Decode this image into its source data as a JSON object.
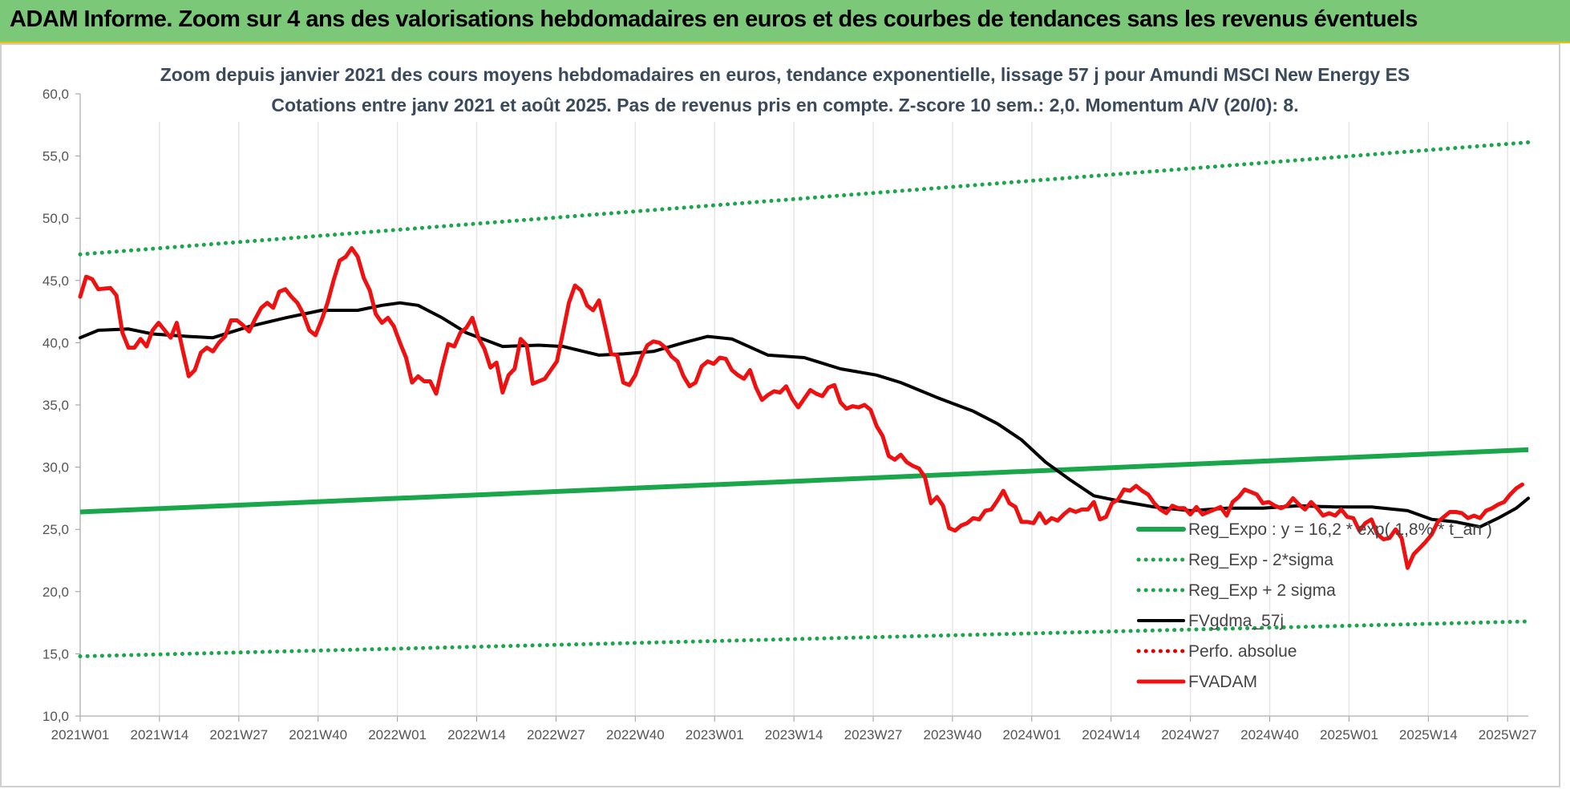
{
  "banner": {
    "title": "ADAM Informe. Zoom sur 4 ans des valorisations hebdomadaires en euros et des courbes de tendances sans les revenus éventuels"
  },
  "chart_data": {
    "type": "line",
    "title": "Zoom depuis janvier 2021 des cours moyens hebdomadaires en euros, tendance exponentielle, lissage 57 j pour Amundi MSCI New Energy ES",
    "subtitle": "Cotations entre janv 2021 et août 2025.  Pas de revenus pris en compte. Z-score 10 sem.: 2,0. Momentum A/V (20/0): 8.",
    "ylim": [
      10,
      60
    ],
    "yticks": [
      "10,0",
      "15,0",
      "20,0",
      "25,0",
      "30,0",
      "35,0",
      "40,0",
      "45,0",
      "50,0",
      "55,0",
      "60,0"
    ],
    "x_labels": [
      "2021W01",
      "2021W14",
      "2021W27",
      "2021W40",
      "2022W01",
      "2022W14",
      "2022W27",
      "2022W40",
      "2023W01",
      "2023W14",
      "2023W27",
      "2023W40",
      "2024W01",
      "2024W14",
      "2024W27",
      "2024W40",
      "2025W01",
      "2025W14",
      "2025W27"
    ],
    "x_range_weeks": [
      0,
      240
    ],
    "grid": "vertical",
    "legend_position": "lower-right",
    "series": [
      {
        "name": "Reg_Expo : y = 16,2 * exp( 1,8% * t_an )",
        "style": "solid",
        "color": "#1aa64a",
        "points": [
          [
            0,
            26.4
          ],
          [
            240,
            31.4
          ]
        ]
      },
      {
        "name": "Reg_Exp - 2*sigma",
        "style": "dotted",
        "color": "#1aa64a",
        "points": [
          [
            0,
            14.8
          ],
          [
            240,
            17.6
          ]
        ]
      },
      {
        "name": "Reg_Exp + 2 sigma",
        "style": "dotted",
        "color": "#1aa64a",
        "points": [
          [
            0,
            47.1
          ],
          [
            240,
            56.1
          ]
        ]
      },
      {
        "name": "FVgdma_57j",
        "style": "solid",
        "color": "#000000",
        "points": [
          [
            0,
            40.4
          ],
          [
            3,
            41
          ],
          [
            8,
            41.1
          ],
          [
            12,
            40.7
          ],
          [
            18,
            40.5
          ],
          [
            22,
            40.4
          ],
          [
            28,
            41.3
          ],
          [
            34,
            42
          ],
          [
            40,
            42.6
          ],
          [
            46,
            42.6
          ],
          [
            50,
            43
          ],
          [
            53,
            43.2
          ],
          [
            56,
            43
          ],
          [
            60,
            42
          ],
          [
            64,
            40.8
          ],
          [
            70,
            39.7
          ],
          [
            76,
            39.8
          ],
          [
            80,
            39.7
          ],
          [
            86,
            39
          ],
          [
            90,
            39.1
          ],
          [
            95,
            39.3
          ],
          [
            100,
            40
          ],
          [
            104,
            40.5
          ],
          [
            108,
            40.3
          ],
          [
            114,
            39
          ],
          [
            120,
            38.8
          ],
          [
            126,
            37.9
          ],
          [
            132,
            37.4
          ],
          [
            136,
            36.8
          ],
          [
            142,
            35.6
          ],
          [
            148,
            34.5
          ],
          [
            152,
            33.5
          ],
          [
            156,
            32.2
          ],
          [
            160,
            30.4
          ],
          [
            164,
            29
          ],
          [
            168,
            27.7
          ],
          [
            172,
            27.3
          ],
          [
            178,
            26.8
          ],
          [
            184,
            26.5
          ],
          [
            190,
            26.7
          ],
          [
            196,
            26.7
          ],
          [
            202,
            26.9
          ],
          [
            208,
            26.8
          ],
          [
            214,
            26.8
          ],
          [
            220,
            26.5
          ],
          [
            224,
            25.8
          ],
          [
            228,
            25.6
          ],
          [
            232,
            25.2
          ],
          [
            235,
            25.9
          ],
          [
            238,
            26.7
          ],
          [
            240,
            27.5
          ]
        ]
      },
      {
        "name": "Perfo. absolue",
        "style": "dotted",
        "color": "#e00000",
        "points": []
      },
      {
        "name": "FVADAM",
        "style": "solid",
        "color": "#ee1111",
        "points": [
          [
            0,
            43.7
          ],
          [
            1,
            45.3
          ],
          [
            2,
            45.1
          ],
          [
            3,
            44.3
          ],
          [
            5,
            44.4
          ],
          [
            6,
            43.8
          ],
          [
            7,
            40.8
          ],
          [
            8,
            39.6
          ],
          [
            9,
            39.6
          ],
          [
            10,
            40.3
          ],
          [
            11,
            39.7
          ],
          [
            12,
            41
          ],
          [
            13,
            41.6
          ],
          [
            14,
            41
          ],
          [
            15,
            40.4
          ],
          [
            16,
            41.6
          ],
          [
            17,
            39.4
          ],
          [
            18,
            37.3
          ],
          [
            19,
            37.8
          ],
          [
            20,
            39.2
          ],
          [
            21,
            39.6
          ],
          [
            22,
            39.3
          ],
          [
            23,
            40
          ],
          [
            24,
            40.5
          ],
          [
            25,
            41.8
          ],
          [
            26,
            41.8
          ],
          [
            27,
            41.4
          ],
          [
            28,
            40.9
          ],
          [
            29,
            41.9
          ],
          [
            30,
            42.8
          ],
          [
            31,
            43.2
          ],
          [
            32,
            42.8
          ],
          [
            33,
            44.1
          ],
          [
            34,
            44.3
          ],
          [
            35,
            43.7
          ],
          [
            36,
            43.2
          ],
          [
            37,
            42.3
          ],
          [
            38,
            41
          ],
          [
            39,
            40.6
          ],
          [
            40,
            41.8
          ],
          [
            41,
            43.2
          ],
          [
            42,
            45
          ],
          [
            43,
            46.6
          ],
          [
            44,
            46.9
          ],
          [
            45,
            47.6
          ],
          [
            46,
            46.9
          ],
          [
            47,
            45.2
          ],
          [
            48,
            44.2
          ],
          [
            49,
            42.3
          ],
          [
            50,
            41.6
          ],
          [
            51,
            42
          ],
          [
            52,
            41.3
          ],
          [
            53,
            40
          ],
          [
            54,
            38.8
          ],
          [
            55,
            36.8
          ],
          [
            56,
            37.3
          ],
          [
            57,
            36.9
          ],
          [
            58,
            36.9
          ],
          [
            59,
            35.9
          ],
          [
            60,
            38
          ],
          [
            61,
            39.9
          ],
          [
            62,
            39.7
          ],
          [
            63,
            40.8
          ],
          [
            64,
            41.2
          ],
          [
            65,
            42
          ],
          [
            66,
            40.4
          ],
          [
            67,
            39.5
          ],
          [
            68,
            38
          ],
          [
            69,
            38.4
          ],
          [
            70,
            36
          ],
          [
            71,
            37.4
          ],
          [
            72,
            37.9
          ],
          [
            73,
            40.3
          ],
          [
            74,
            39.8
          ],
          [
            75,
            36.7
          ],
          [
            76,
            36.9
          ],
          [
            77,
            37.1
          ],
          [
            78,
            37.8
          ],
          [
            79,
            38.5
          ],
          [
            80,
            40.8
          ],
          [
            81,
            43.2
          ],
          [
            82,
            44.6
          ],
          [
            83,
            44.2
          ],
          [
            84,
            43
          ],
          [
            85,
            42.6
          ],
          [
            86,
            43.4
          ],
          [
            87,
            41.3
          ],
          [
            88,
            39.1
          ],
          [
            89,
            39
          ],
          [
            90,
            36.8
          ],
          [
            91,
            36.6
          ],
          [
            92,
            37.4
          ],
          [
            93,
            38.8
          ],
          [
            94,
            39.8
          ],
          [
            95,
            40.1
          ],
          [
            96,
            40
          ],
          [
            97,
            39.6
          ],
          [
            98,
            38.9
          ],
          [
            99,
            38.5
          ],
          [
            100,
            37.3
          ],
          [
            101,
            36.5
          ],
          [
            102,
            36.8
          ],
          [
            103,
            38.1
          ],
          [
            104,
            38.5
          ],
          [
            105,
            38.3
          ],
          [
            106,
            38.8
          ],
          [
            107,
            38.7
          ],
          [
            108,
            37.8
          ],
          [
            109,
            37.4
          ],
          [
            110,
            37.1
          ],
          [
            111,
            37.8
          ],
          [
            112,
            36.4
          ],
          [
            113,
            35.4
          ],
          [
            114,
            35.8
          ],
          [
            115,
            36.1
          ],
          [
            116,
            36
          ],
          [
            117,
            36.5
          ],
          [
            118,
            35.5
          ],
          [
            119,
            34.8
          ],
          [
            120,
            35.5
          ],
          [
            121,
            36.2
          ],
          [
            122,
            35.9
          ],
          [
            123,
            35.7
          ],
          [
            124,
            36.4
          ],
          [
            125,
            36.6
          ],
          [
            126,
            35.2
          ],
          [
            127,
            34.7
          ],
          [
            128,
            34.9
          ],
          [
            129,
            34.8
          ],
          [
            130,
            35
          ],
          [
            131,
            34.6
          ],
          [
            132,
            33.3
          ],
          [
            133,
            32.5
          ],
          [
            134,
            30.9
          ],
          [
            135,
            30.6
          ],
          [
            136,
            31
          ],
          [
            137,
            30.4
          ],
          [
            138,
            30.1
          ],
          [
            139,
            29.9
          ],
          [
            140,
            29.2
          ],
          [
            141,
            27.1
          ],
          [
            142,
            27.6
          ],
          [
            143,
            26.9
          ],
          [
            144,
            25.1
          ],
          [
            145,
            24.9
          ],
          [
            146,
            25.3
          ],
          [
            147,
            25.5
          ],
          [
            148,
            25.9
          ],
          [
            149,
            25.8
          ],
          [
            150,
            26.5
          ],
          [
            151,
            26.6
          ],
          [
            152,
            27.3
          ],
          [
            153,
            28.1
          ],
          [
            154,
            27.1
          ],
          [
            155,
            26.8
          ],
          [
            156,
            25.6
          ],
          [
            157,
            25.6
          ],
          [
            158,
            25.5
          ],
          [
            159,
            26.3
          ],
          [
            160,
            25.5
          ],
          [
            161,
            25.9
          ],
          [
            162,
            25.7
          ],
          [
            163,
            26.2
          ],
          [
            164,
            26.6
          ],
          [
            165,
            26.4
          ],
          [
            166,
            26.6
          ],
          [
            167,
            26.6
          ],
          [
            168,
            27.2
          ],
          [
            169,
            25.8
          ],
          [
            170,
            26
          ],
          [
            171,
            27.1
          ],
          [
            172,
            27.4
          ],
          [
            173,
            28.2
          ],
          [
            174,
            28.1
          ],
          [
            175,
            28.5
          ],
          [
            176,
            28.1
          ],
          [
            177,
            27.8
          ],
          [
            178,
            27.1
          ],
          [
            179,
            26.6
          ],
          [
            180,
            26.3
          ],
          [
            181,
            26.9
          ],
          [
            182,
            26.7
          ],
          [
            183,
            26.7
          ],
          [
            184,
            26.2
          ],
          [
            185,
            26.8
          ],
          [
            186,
            26.2
          ],
          [
            187,
            26.4
          ],
          [
            188,
            26.6
          ],
          [
            189,
            26.8
          ],
          [
            190,
            26.1
          ],
          [
            191,
            27.2
          ],
          [
            192,
            27.6
          ],
          [
            193,
            28.2
          ],
          [
            194,
            28
          ],
          [
            195,
            27.8
          ],
          [
            196,
            27.1
          ],
          [
            197,
            27.2
          ],
          [
            198,
            26.9
          ],
          [
            199,
            26.7
          ],
          [
            200,
            26.9
          ],
          [
            201,
            27.5
          ],
          [
            202,
            27
          ],
          [
            203,
            26.6
          ],
          [
            204,
            27.2
          ],
          [
            205,
            26.7
          ],
          [
            206,
            26.1
          ],
          [
            207,
            26.3
          ],
          [
            208,
            26.1
          ],
          [
            209,
            26.6
          ],
          [
            210,
            26
          ],
          [
            211,
            25.9
          ],
          [
            212,
            24.9
          ],
          [
            213,
            25.5
          ],
          [
            214,
            25.8
          ],
          [
            215,
            24.6
          ],
          [
            216,
            24.2
          ],
          [
            217,
            24.3
          ],
          [
            218,
            25
          ],
          [
            219,
            24.3
          ],
          [
            220,
            21.9
          ],
          [
            221,
            23
          ],
          [
            222,
            23.5
          ],
          [
            223,
            24
          ],
          [
            224,
            24.6
          ],
          [
            225,
            25.6
          ],
          [
            226,
            26
          ],
          [
            227,
            26.4
          ],
          [
            228,
            26.4
          ],
          [
            229,
            26.3
          ],
          [
            230,
            25.9
          ],
          [
            231,
            26.1
          ],
          [
            232,
            25.9
          ],
          [
            233,
            26.5
          ],
          [
            234,
            26.7
          ],
          [
            235,
            27
          ],
          [
            236,
            27.2
          ],
          [
            237,
            27.8
          ],
          [
            238,
            28.3
          ],
          [
            239,
            28.6
          ]
        ]
      }
    ]
  }
}
